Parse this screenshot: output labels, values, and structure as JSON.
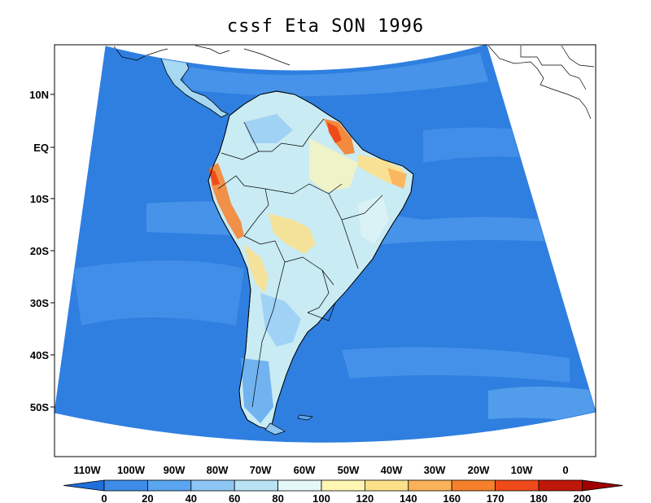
{
  "title": "cssf Eta SON 1996",
  "lat_labels": [
    "10N",
    "EQ",
    "10S",
    "20S",
    "30S",
    "40S",
    "50S"
  ],
  "lon_labels": [
    "110W",
    "100W",
    "90W",
    "80W",
    "70W",
    "60W",
    "50W",
    "40W",
    "30W",
    "20W",
    "10W",
    "0"
  ],
  "colorbar": {
    "labels": [
      "0",
      "20",
      "40",
      "60",
      "80",
      "100",
      "120",
      "140",
      "160",
      "170",
      "180",
      "200"
    ],
    "colors": [
      "#1f6fdc",
      "#3d8ce8",
      "#5aa5ef",
      "#8ec7f5",
      "#b7e3f5",
      "#e6f7f7",
      "#fff6b3",
      "#fde08a",
      "#fbb25a",
      "#f7802a",
      "#ef4b1a",
      "#c01808",
      "#a00000"
    ]
  },
  "map": {
    "ocean_color": "#3d86e0",
    "land_color": "#c9ebf3",
    "region": "South America"
  }
}
